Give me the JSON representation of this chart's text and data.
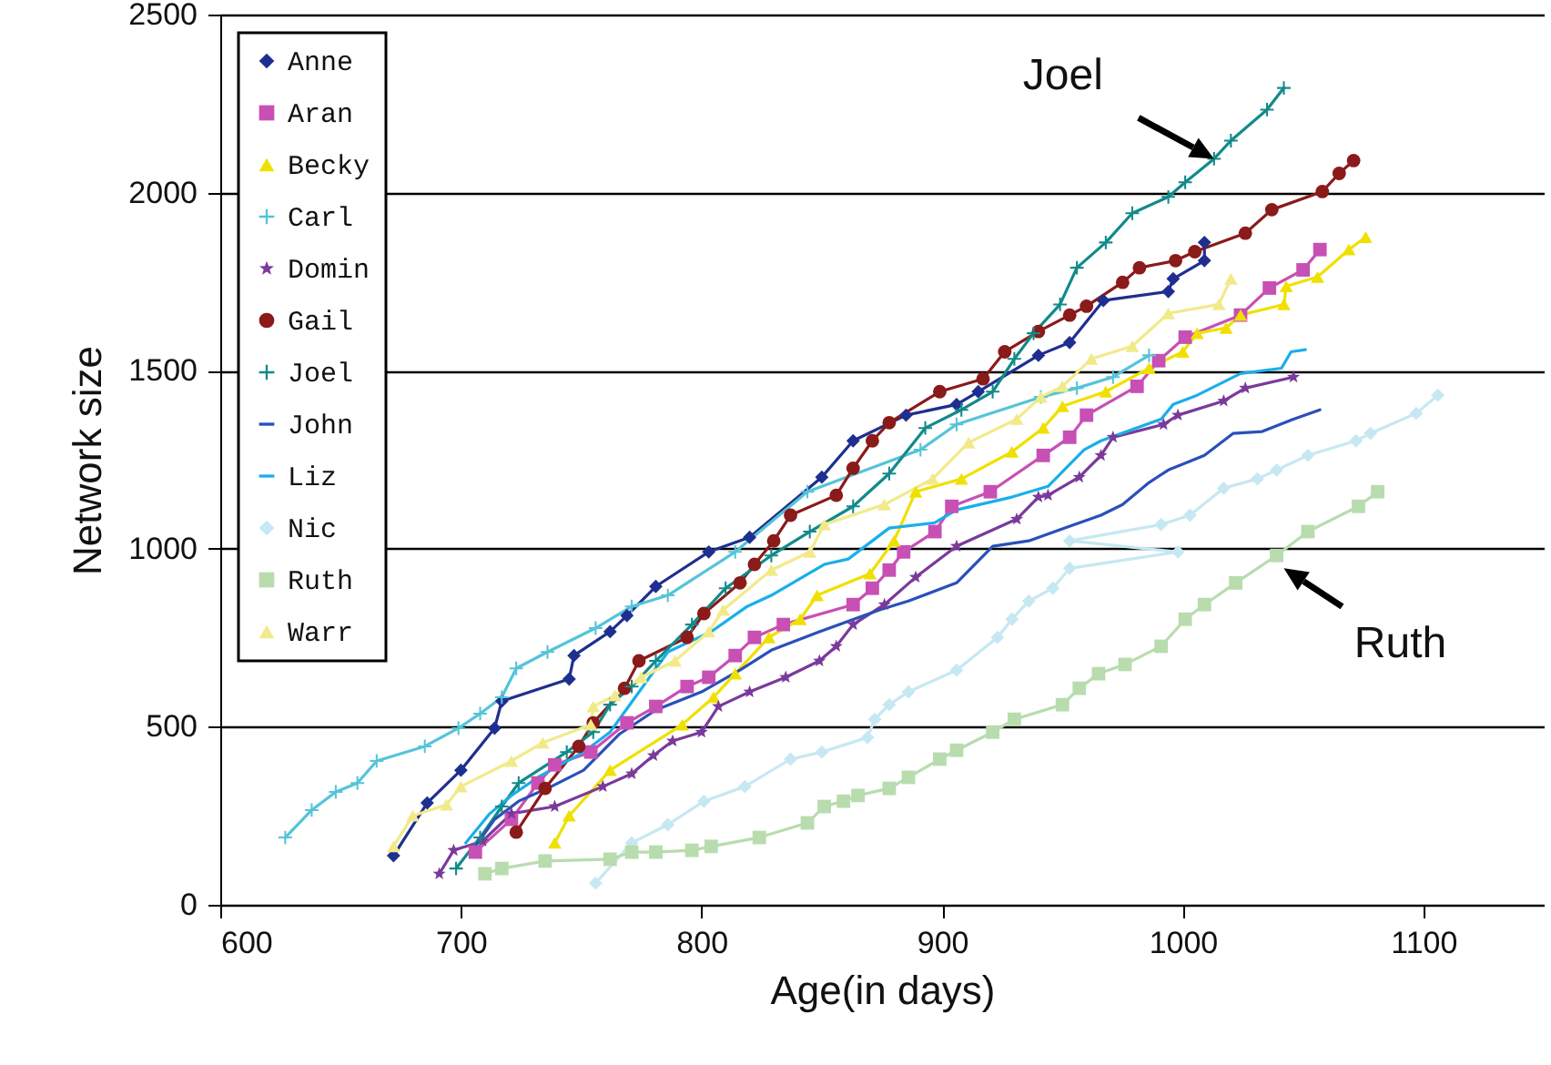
{
  "chart_data": {
    "type": "line",
    "xlabel": "Age(in days)",
    "ylabel": "Network size",
    "xlim": [
      600,
      1150
    ],
    "xticks": [
      600,
      700,
      800,
      900,
      1000,
      1100
    ],
    "ylim": [
      0,
      2500
    ],
    "yticks": [
      0,
      500,
      1000,
      1500,
      2000,
      2500
    ],
    "grid": "y",
    "legend": "top left",
    "annotations": [
      {
        "text": "Joel",
        "x": 1013,
        "y": 2095
      },
      {
        "text": "Ruth",
        "x": 1042,
        "y": 945
      }
    ],
    "series": [
      {
        "name": "Anne",
        "color": "#1f2f8f",
        "marker": "diamond",
        "x": [
          672,
          686,
          700,
          714,
          717,
          745,
          747,
          762,
          769,
          781,
          803,
          820,
          850,
          863,
          885,
          906,
          915,
          940,
          953,
          967,
          994,
          996,
          1009,
          1009
        ],
        "values": [
          138,
          286,
          378,
          496,
          572,
          634,
          700,
          767,
          812,
          894,
          991,
          1032,
          1201,
          1303,
          1375,
          1405,
          1441,
          1543,
          1579,
          1697,
          1722,
          1758,
          1809,
          1860
        ]
      },
      {
        "name": "Aran",
        "color": "#c84fb4",
        "marker": "square",
        "x": [
          706,
          721,
          732,
          739,
          754,
          769,
          781,
          794,
          803,
          814,
          822,
          834,
          863,
          871,
          878,
          884,
          897,
          904,
          920,
          942,
          953,
          960,
          981,
          990,
          1001,
          1024,
          1036,
          1050,
          1057
        ],
        "values": [
          148,
          240,
          342,
          393,
          429,
          511,
          557,
          613,
          639,
          700,
          751,
          787,
          843,
          889,
          940,
          991,
          1048,
          1119,
          1160,
          1262,
          1313,
          1375,
          1456,
          1528,
          1594,
          1656,
          1732,
          1783,
          1840
        ]
      },
      {
        "name": "Becky",
        "color": "#f0e000",
        "marker": "triangle",
        "x": [
          739,
          745,
          762,
          792,
          805,
          814,
          828,
          841,
          848,
          870,
          880,
          889,
          908,
          929,
          942,
          950,
          968,
          986,
          1000,
          1006,
          1018,
          1024,
          1042,
          1043,
          1056,
          1069,
          1076
        ],
        "values": [
          174,
          250,
          378,
          506,
          583,
          649,
          751,
          802,
          869,
          930,
          1022,
          1160,
          1196,
          1272,
          1339,
          1400,
          1441,
          1507,
          1553,
          1605,
          1620,
          1656,
          1686,
          1737,
          1763,
          1840,
          1875
        ]
      },
      {
        "name": "Carl",
        "color": "#55c4d8",
        "marker": "cross",
        "x": [
          627,
          638,
          648,
          657,
          665,
          685,
          699,
          708,
          717,
          723,
          736,
          756,
          771,
          786,
          814,
          844,
          891,
          906,
          941,
          956,
          971,
          986
        ],
        "values": [
          189,
          266,
          317,
          342,
          404,
          445,
          496,
          537,
          583,
          664,
          710,
          777,
          838,
          869,
          991,
          1160,
          1278,
          1349,
          1426,
          1451,
          1482,
          1543
        ]
      },
      {
        "name": "Domin",
        "color": "#7a3a9a",
        "marker": "star",
        "x": [
          691,
          697,
          709,
          721,
          739,
          759,
          771,
          780,
          788,
          800,
          807,
          820,
          835,
          849,
          856,
          863,
          876,
          889,
          906,
          931,
          940,
          944,
          957,
          966,
          971,
          992,
          998,
          1017,
          1026,
          1046
        ],
        "values": [
          87,
          153,
          179,
          256,
          276,
          332,
          368,
          419,
          460,
          485,
          557,
          598,
          639,
          685,
          726,
          787,
          843,
          920,
          1007,
          1083,
          1145,
          1150,
          1201,
          1262,
          1313,
          1349,
          1375,
          1415,
          1451,
          1482
        ]
      },
      {
        "name": "Gail",
        "color": "#8b1a1a",
        "marker": "circle",
        "x": [
          723,
          735,
          749,
          755,
          768,
          774,
          794,
          801,
          816,
          822,
          830,
          837,
          856,
          863,
          871,
          878,
          899,
          917,
          926,
          940,
          953,
          960,
          975,
          982,
          997,
          1005,
          1026,
          1037,
          1058,
          1065,
          1071
        ],
        "values": [
          204,
          327,
          445,
          511,
          608,
          685,
          751,
          818,
          904,
          956,
          1022,
          1094,
          1150,
          1226,
          1303,
          1354,
          1441,
          1477,
          1553,
          1610,
          1656,
          1681,
          1748,
          1789,
          1809,
          1834,
          1886,
          1952,
          2003,
          2054,
          2090
        ]
      },
      {
        "name": "Joel",
        "color": "#128a8a",
        "marker": "cross",
        "x": [
          698,
          708,
          717,
          724,
          744,
          755,
          762,
          771,
          781,
          796,
          810,
          829,
          845,
          863,
          878,
          893,
          908,
          921,
          930,
          938,
          949,
          956,
          968,
          979,
          994,
          1001,
          1013,
          1020,
          1035,
          1042
        ],
        "values": [
          102,
          189,
          276,
          342,
          429,
          485,
          562,
          613,
          685,
          787,
          889,
          981,
          1048,
          1119,
          1211,
          1339,
          1390,
          1441,
          1533,
          1605,
          1686,
          1789,
          1860,
          1942,
          1988,
          2029,
          2095,
          2146,
          2233,
          2294
        ]
      },
      {
        "name": "John",
        "color": "#2a50b8",
        "marker": "none",
        "x": [
          706,
          714,
          724,
          736,
          751,
          766,
          781,
          800,
          816,
          829,
          849,
          874,
          886,
          906,
          921,
          936,
          951,
          966,
          975,
          986,
          994,
          1009,
          1021,
          1033,
          1046,
          1057
        ],
        "values": [
          164,
          240,
          291,
          327,
          378,
          480,
          547,
          598,
          659,
          715,
          767,
          828,
          853,
          904,
          1007,
          1022,
          1058,
          1094,
          1124,
          1186,
          1221,
          1262,
          1324,
          1329,
          1364,
          1390
        ]
      },
      {
        "name": "Liz",
        "color": "#1aaeea",
        "marker": "none",
        "x": [
          702,
          712,
          721,
          732,
          751,
          762,
          786,
          804,
          819,
          829,
          851,
          861,
          878,
          897,
          906,
          929,
          944,
          959,
          966,
          991,
          996,
          1006,
          1024,
          1041,
          1045,
          1051
        ],
        "values": [
          174,
          256,
          307,
          358,
          429,
          485,
          710,
          767,
          838,
          869,
          956,
          971,
          1058,
          1073,
          1109,
          1145,
          1175,
          1278,
          1303,
          1364,
          1405,
          1431,
          1492,
          1507,
          1553,
          1559
        ]
      },
      {
        "name": "Nic",
        "color": "#c6e8f2",
        "marker": "diamond",
        "x": [
          756,
          771,
          786,
          801,
          818,
          837,
          850,
          869,
          872,
          878,
          886,
          906,
          923,
          929,
          936,
          946,
          953,
          998,
          953,
          991,
          1003,
          1017,
          1031,
          1039,
          1052,
          1072,
          1078,
          1097,
          1106
        ],
        "values": [
          61,
          174,
          225,
          291,
          332,
          409,
          429,
          470,
          521,
          562,
          598,
          659,
          751,
          802,
          853,
          889,
          945,
          991,
          1022,
          1068,
          1094,
          1170,
          1196,
          1221,
          1262,
          1303,
          1324,
          1380,
          1431
        ]
      },
      {
        "name": "Ruth",
        "color": "#b8dcae",
        "marker": "square",
        "x": [
          710,
          717,
          735,
          762,
          771,
          781,
          796,
          804,
          824,
          844,
          851,
          859,
          865,
          878,
          886,
          899,
          906,
          921,
          930,
          950,
          957,
          965,
          976,
          991,
          1001,
          1009,
          1022,
          1039,
          1052,
          1073,
          1081
        ],
        "values": [
          87,
          102,
          123,
          128,
          148,
          148,
          153,
          164,
          189,
          230,
          276,
          291,
          307,
          327,
          358,
          409,
          434,
          485,
          521,
          562,
          608,
          649,
          675,
          726,
          802,
          843,
          904,
          981,
          1048,
          1119,
          1160
        ]
      },
      {
        "name": "Warr",
        "color": "#f2ea8a",
        "marker": "triangle",
        "x": [
          672,
          680,
          694,
          700,
          721,
          734,
          754,
          755,
          764,
          775,
          789,
          803,
          809,
          829,
          845,
          851,
          876,
          896,
          911,
          931,
          941,
          950,
          962,
          979,
          994,
          1015,
          1020
        ],
        "values": [
          164,
          250,
          281,
          332,
          404,
          455,
          506,
          557,
          588,
          639,
          685,
          767,
          828,
          940,
          991,
          1068,
          1124,
          1196,
          1298,
          1364,
          1426,
          1456,
          1533,
          1569,
          1661,
          1686,
          1758
        ]
      }
    ]
  }
}
